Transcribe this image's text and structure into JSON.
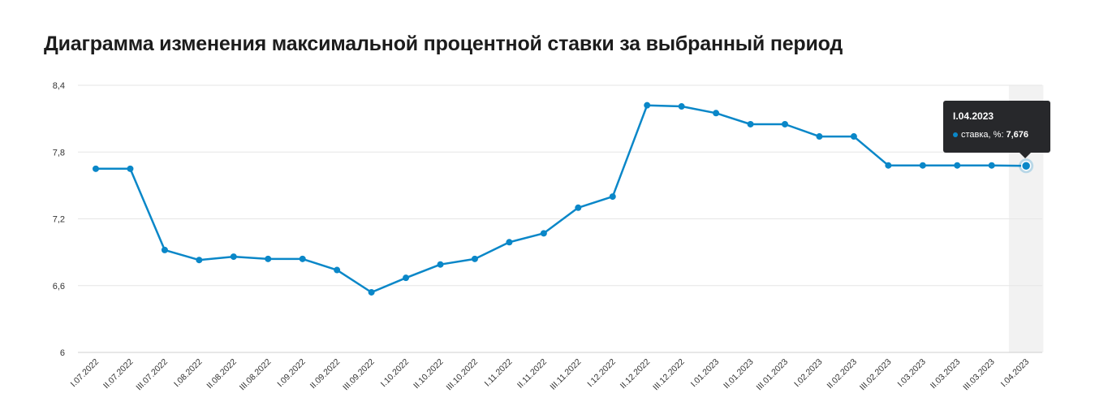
{
  "title": "Диаграмма изменения максимальной процентной ставки за выбранный период",
  "colors": {
    "line": "#0a87c8",
    "grid": "#e6e6e6",
    "highlight": "#f2f2f2",
    "tooltip_bg": "#27282b"
  },
  "tooltip": {
    "date": "I.04.2023",
    "series_label": "ставка, %:",
    "value": "7,676"
  },
  "chart_data": {
    "type": "line",
    "title": "Диаграмма изменения максимальной процентной ставки за выбранный период",
    "xlabel": "",
    "ylabel": "",
    "ylim": [
      6,
      8.4
    ],
    "yticks": [
      6,
      6.6,
      7.2,
      7.8,
      8.4
    ],
    "ytick_labels": [
      "6",
      "6,6",
      "7,2",
      "7,8",
      "8,4"
    ],
    "grid": true,
    "categories": [
      "I.07.2022",
      "II.07.2022",
      "III.07.2022",
      "I.08.2022",
      "II.08.2022",
      "III.08.2022",
      "I.09.2022",
      "II.09.2022",
      "III.09.2022",
      "I.10.2022",
      "II.10.2022",
      "III.10.2022",
      "I.11.2022",
      "II.11.2022",
      "III.11.2022",
      "I.12.2022",
      "II.12.2022",
      "III.12.2022",
      "I.01.2023",
      "II.01.2023",
      "III.01.2023",
      "I.02.2023",
      "II.02.2023",
      "III.02.2023",
      "I.03.2023",
      "II.03.2023",
      "III.03.2023",
      "I.04.2023"
    ],
    "series": [
      {
        "name": "ставка, %",
        "values": [
          7.65,
          7.65,
          6.92,
          6.83,
          6.86,
          6.84,
          6.84,
          6.74,
          6.54,
          6.67,
          6.79,
          6.84,
          6.99,
          7.07,
          7.3,
          7.4,
          8.22,
          8.21,
          8.15,
          8.05,
          8.05,
          7.94,
          7.94,
          7.68,
          7.68,
          7.68,
          7.68,
          7.676
        ]
      }
    ],
    "highlighted_index": 27
  }
}
